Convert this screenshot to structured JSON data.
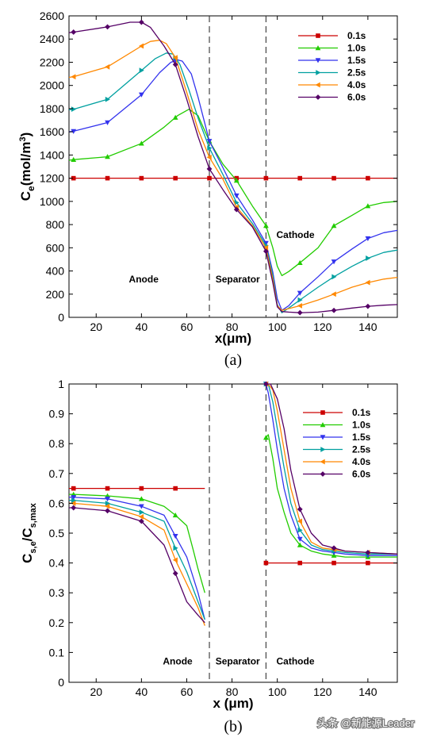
{
  "chart_data": [
    {
      "type": "line",
      "caption": "(a)",
      "xlabel": "x(μm)",
      "ylabel_main": "C",
      "ylabel_sub": "e",
      "ylabel_unit": "(mol/m",
      "ylabel_sup": "3",
      "ylabel_end": ")",
      "xlim": [
        8,
        153
      ],
      "ylim": [
        0,
        2600
      ],
      "xticks": [
        20,
        40,
        60,
        80,
        100,
        120,
        140
      ],
      "yticks": [
        0,
        200,
        400,
        600,
        800,
        1000,
        1200,
        1400,
        1600,
        1800,
        2000,
        2200,
        2400,
        2600
      ],
      "boundaries": [
        70,
        95
      ],
      "regions": [
        {
          "label": "Anode",
          "x": 41,
          "y": 330
        },
        {
          "label": "Separator",
          "x": 82.5,
          "y": 330
        },
        {
          "label": "Cathode",
          "x": 108,
          "y": 710
        }
      ],
      "legend_position": "top-right",
      "series": [
        {
          "name": "0.1s",
          "color": "#cc0000",
          "marker": "square",
          "x": [
            8,
            10,
            25,
            40,
            55,
            70,
            82,
            95,
            100,
            110,
            125,
            140,
            153
          ],
          "y": [
            1200,
            1200,
            1200,
            1200,
            1200,
            1200,
            1200,
            1200,
            1200,
            1200,
            1200,
            1200,
            1200
          ],
          "markers": [
            10,
            25,
            40,
            55,
            70,
            82,
            95,
            110,
            125,
            140
          ]
        },
        {
          "name": "1.0s",
          "color": "#22cc00",
          "marker": "triangle-up",
          "x": [
            8,
            10,
            25,
            40,
            50,
            56,
            61,
            65,
            70,
            76,
            82,
            89,
            95,
            98,
            100,
            102,
            105,
            110,
            118,
            125,
            133,
            140,
            147,
            153
          ],
          "y": [
            1355,
            1360,
            1385,
            1500,
            1640,
            1740,
            1795,
            1740,
            1520,
            1320,
            1180,
            960,
            790,
            600,
            440,
            360,
            395,
            470,
            600,
            790,
            880,
            960,
            990,
            1000
          ],
          "markers": [
            10,
            25,
            40,
            55,
            70,
            82,
            95,
            110,
            125,
            140
          ]
        },
        {
          "name": "1.5s",
          "color": "#3333ee",
          "marker": "triangle-down",
          "x": [
            8,
            10,
            25,
            40,
            48,
            53,
            56,
            58,
            62,
            65,
            70,
            76,
            82,
            89,
            95,
            98,
            100,
            102,
            105,
            110,
            118,
            125,
            133,
            140,
            147,
            153
          ],
          "y": [
            1600,
            1605,
            1680,
            1920,
            2110,
            2200,
            2220,
            2210,
            2100,
            1900,
            1520,
            1290,
            1050,
            840,
            640,
            390,
            160,
            60,
            100,
            210,
            350,
            480,
            590,
            680,
            730,
            750
          ],
          "markers": [
            10,
            25,
            40,
            55,
            70,
            82,
            95,
            110,
            125,
            140
          ]
        },
        {
          "name": "2.5s",
          "color": "#00a0a0",
          "marker": "triangle-right",
          "x": [
            8,
            10,
            25,
            40,
            46,
            51,
            54,
            57,
            61,
            65,
            70,
            76,
            82,
            89,
            95,
            98,
            100,
            102,
            105,
            110,
            118,
            125,
            133,
            140,
            147,
            153
          ],
          "y": [
            1790,
            1795,
            1880,
            2130,
            2230,
            2280,
            2270,
            2180,
            1960,
            1720,
            1460,
            1230,
            990,
            810,
            620,
            360,
            110,
            40,
            80,
            150,
            260,
            350,
            440,
            510,
            560,
            580
          ],
          "markers": [
            10,
            25,
            40,
            55,
            70,
            82,
            95,
            110,
            125,
            140
          ]
        },
        {
          "name": "4.0s",
          "color": "#ff8800",
          "marker": "triangle-left",
          "x": [
            8,
            10,
            25,
            40,
            44,
            48,
            51,
            55,
            60,
            65,
            70,
            76,
            82,
            89,
            95,
            98,
            100,
            102,
            105,
            110,
            118,
            125,
            133,
            140,
            147,
            153
          ],
          "y": [
            2070,
            2075,
            2160,
            2340,
            2380,
            2390,
            2360,
            2240,
            1940,
            1620,
            1380,
            1190,
            950,
            790,
            600,
            330,
            100,
            60,
            75,
            100,
            150,
            200,
            260,
            300,
            330,
            345
          ],
          "markers": [
            10,
            25,
            40,
            55,
            70,
            82,
            95,
            110,
            125,
            140
          ]
        },
        {
          "name": "6.0s",
          "color": "#550066",
          "marker": "diamond",
          "x": [
            8,
            10,
            25,
            35,
            40,
            44,
            50,
            55,
            60,
            65,
            70,
            76,
            82,
            89,
            95,
            98,
            100,
            102,
            105,
            110,
            118,
            125,
            133,
            140,
            147,
            153
          ],
          "y": [
            2455,
            2460,
            2505,
            2545,
            2545,
            2500,
            2340,
            2180,
            1880,
            1560,
            1280,
            1100,
            930,
            780,
            570,
            300,
            90,
            50,
            45,
            40,
            45,
            60,
            80,
            95,
            105,
            110
          ],
          "markers": [
            10,
            25,
            40,
            55,
            70,
            82,
            95,
            110,
            125,
            140
          ]
        }
      ]
    },
    {
      "type": "line",
      "caption": "(b)",
      "xlabel": "x (μm)",
      "ylabel_main": "C",
      "ylabel_sub": "s,e",
      "ylabel_mid": "/C",
      "ylabel_sub2": "s,max",
      "xlim": [
        8,
        153
      ],
      "ylim": [
        0,
        1
      ],
      "xticks": [
        20,
        40,
        60,
        80,
        100,
        120,
        140
      ],
      "yticks": [
        0,
        0.1,
        0.2,
        0.3,
        0.4,
        0.5,
        0.6,
        0.7,
        0.8,
        0.9,
        1
      ],
      "ytick_labels": [
        "0",
        "0.1",
        "0.2",
        "0.3",
        "0.4",
        "0.5",
        "0.6",
        "0.7",
        "0.8",
        "0.9",
        "1"
      ],
      "boundaries": [
        70,
        95
      ],
      "regions": [
        {
          "label": "Anode",
          "x": 56,
          "y": 0.07
        },
        {
          "label": "Separator",
          "x": 82.5,
          "y": 0.07
        },
        {
          "label": "Cathode",
          "x": 108,
          "y": 0.07
        }
      ],
      "legend_position": "top-right",
      "series": [
        {
          "name": "0.1s",
          "color": "#cc0000",
          "marker": "square",
          "segments": [
            {
              "x": [
                8,
                10,
                25,
                40,
                55,
                68
              ],
              "y": [
                0.65,
                0.65,
                0.65,
                0.65,
                0.65,
                0.65
              ],
              "markers": [
                10,
                25,
                40,
                55
              ]
            },
            {
              "x": [
                95,
                110,
                125,
                140,
                153
              ],
              "y": [
                0.4,
                0.4,
                0.4,
                0.4,
                0.4
              ],
              "markers": [
                95,
                110,
                125,
                140
              ]
            }
          ]
        },
        {
          "name": "1.0s",
          "color": "#22cc00",
          "marker": "triangle-up",
          "segments": [
            {
              "x": [
                8,
                10,
                25,
                40,
                50,
                55,
                60,
                63,
                65,
                68
              ],
              "y": [
                0.63,
                0.63,
                0.625,
                0.615,
                0.59,
                0.56,
                0.525,
                0.44,
                0.38,
                0.3
              ],
              "markers": [
                10,
                25,
                40,
                55
              ]
            },
            {
              "x": [
                95,
                96,
                98,
                100,
                103,
                106,
                110,
                115,
                120,
                125,
                130,
                140,
                153
              ],
              "y": [
                0.82,
                0.83,
                0.75,
                0.65,
                0.57,
                0.5,
                0.46,
                0.44,
                0.43,
                0.425,
                0.42,
                0.42,
                0.42
              ],
              "markers": [
                95,
                110,
                125,
                140
              ]
            }
          ]
        },
        {
          "name": "1.5s",
          "color": "#3333ee",
          "marker": "triangle-down",
          "segments": [
            {
              "x": [
                8,
                10,
                25,
                40,
                50,
                55,
                60,
                65,
                68
              ],
              "y": [
                0.62,
                0.62,
                0.615,
                0.59,
                0.56,
                0.49,
                0.42,
                0.3,
                0.21
              ],
              "markers": [
                10,
                25,
                40,
                55
              ]
            },
            {
              "x": [
                95,
                96,
                98,
                100,
                103,
                106,
                110,
                115,
                120,
                125,
                130,
                140,
                153
              ],
              "y": [
                1.0,
                0.97,
                0.88,
                0.78,
                0.65,
                0.56,
                0.48,
                0.45,
                0.44,
                0.435,
                0.43,
                0.425,
                0.425
              ],
              "markers": [
                95,
                110,
                125,
                140
              ]
            }
          ]
        },
        {
          "name": "2.5s",
          "color": "#00a0a0",
          "marker": "triangle-right",
          "segments": [
            {
              "x": [
                8,
                10,
                25,
                40,
                50,
                55,
                60,
                65,
                68
              ],
              "y": [
                0.61,
                0.61,
                0.6,
                0.57,
                0.54,
                0.45,
                0.37,
                0.27,
                0.21
              ],
              "markers": [
                10,
                25,
                40,
                55
              ]
            },
            {
              "x": [
                95,
                96,
                98,
                100,
                103,
                106,
                110,
                115,
                120,
                125,
                130,
                140,
                153
              ],
              "y": [
                1.0,
                1.0,
                0.94,
                0.85,
                0.72,
                0.6,
                0.51,
                0.46,
                0.445,
                0.44,
                0.435,
                0.43,
                0.43
              ],
              "markers": [
                95,
                110,
                125,
                140
              ]
            }
          ]
        },
        {
          "name": "4.0s",
          "color": "#ff8800",
          "marker": "triangle-left",
          "segments": [
            {
              "x": [
                8,
                10,
                25,
                40,
                50,
                55,
                60,
                65,
                68
              ],
              "y": [
                0.6,
                0.6,
                0.59,
                0.555,
                0.51,
                0.41,
                0.33,
                0.25,
                0.19
              ],
              "markers": [
                10,
                25,
                40,
                55
              ]
            },
            {
              "x": [
                95,
                96,
                98,
                100,
                103,
                106,
                110,
                115,
                120,
                125,
                130,
                140,
                153
              ],
              "y": [
                1.0,
                1.0,
                0.98,
                0.91,
                0.78,
                0.65,
                0.54,
                0.47,
                0.45,
                0.445,
                0.44,
                0.435,
                0.43
              ],
              "markers": [
                95,
                110,
                125,
                140
              ]
            }
          ]
        },
        {
          "name": "6.0s",
          "color": "#550066",
          "marker": "diamond",
          "segments": [
            {
              "x": [
                8,
                10,
                25,
                40,
                50,
                55,
                60,
                65,
                68
              ],
              "y": [
                0.585,
                0.585,
                0.575,
                0.54,
                0.46,
                0.365,
                0.27,
                0.225,
                0.2
              ],
              "markers": [
                10,
                25,
                40,
                55
              ]
            },
            {
              "x": [
                95,
                97,
                100,
                103,
                106,
                110,
                115,
                120,
                125,
                130,
                140,
                153
              ],
              "y": [
                1.0,
                1.0,
                0.95,
                0.85,
                0.71,
                0.58,
                0.5,
                0.46,
                0.45,
                0.44,
                0.435,
                0.43
              ],
              "markers": [
                95,
                110,
                125,
                140
              ]
            }
          ]
        }
      ]
    }
  ],
  "watermark": "头条 @新能源Leader"
}
